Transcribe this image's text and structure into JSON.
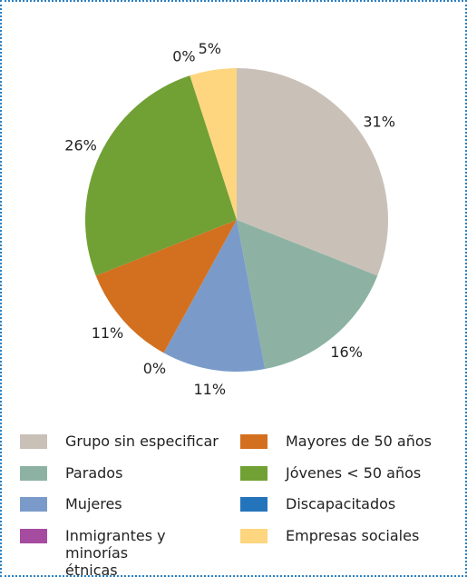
{
  "chart_data": {
    "type": "pie",
    "series": [
      {
        "name": "Grupo sin especificar",
        "color": "#c9c1b8",
        "values": [
          31
        ],
        "value_labels": [
          "31%"
        ]
      },
      {
        "name": "Parados",
        "color": "#8db2a3",
        "values": [
          16
        ],
        "value_labels": [
          "16%"
        ]
      },
      {
        "name": "Mujeres",
        "color": "#7a9bc9",
        "values": [
          11
        ],
        "value_labels": [
          "11%"
        ]
      },
      {
        "name": "Discapacitados",
        "color": "#2474bc",
        "values": [
          0
        ],
        "value_labels": [
          "0%"
        ]
      },
      {
        "name": "Mayores de 50 años",
        "color": "#d3701f",
        "values": [
          11
        ],
        "value_labels": [
          "11%"
        ]
      },
      {
        "name": "Jóvenes < 50 años",
        "color": "#71a034",
        "values": [
          26
        ],
        "value_labels": [
          "26%"
        ]
      },
      {
        "name": "Inmigrantes y minorías étnicas",
        "color": "#a64ca0",
        "values": [
          0
        ],
        "value_labels": [
          "0%"
        ]
      },
      {
        "name": "Empresas sociales",
        "color": "#fdd67f",
        "values": [
          5
        ],
        "value_labels": [
          "5%"
        ]
      }
    ]
  }
}
